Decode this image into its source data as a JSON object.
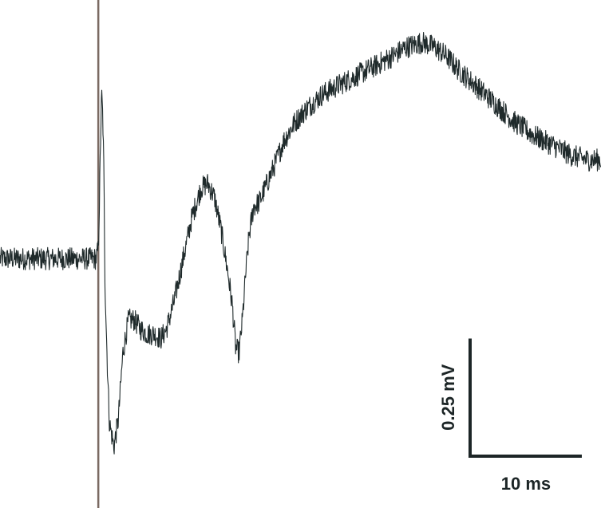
{
  "chart_data": {
    "type": "line",
    "title": "",
    "xlabel": "",
    "ylabel": "",
    "x_unit": "ms",
    "y_unit": "mV",
    "xlim": [
      0,
      53.8
    ],
    "ylim": [
      -0.53,
      0.55
    ],
    "grid": false,
    "legend": "none",
    "stimulus_marker": {
      "x": 8.8
    },
    "series": [
      {
        "x": [
          0,
          8.6,
          8.8,
          8.9,
          9.0,
          9.1,
          9.2,
          9.3,
          9.4,
          9.6,
          9.8,
          10.2,
          10.6,
          11.0,
          11.5,
          12.0,
          12.6,
          13.2,
          13.8,
          14.4,
          14.9,
          15.6,
          16.4,
          17.2,
          18.0,
          18.6,
          19.2,
          19.8,
          20.4,
          20.8,
          21.1,
          21.4,
          21.7,
          22.0,
          22.3,
          22.7,
          23.2,
          23.9,
          24.6,
          25.4,
          26.4,
          27.5,
          28.9,
          30.4,
          32.0,
          33.6,
          35.1,
          36.4,
          37.8,
          38.9,
          40.0,
          41.1,
          42.5,
          44.3,
          46.1,
          47.9,
          49.6,
          51.1,
          52.6,
          53.8
        ],
        "y": [
          0.0,
          0.0,
          0.02,
          0.12,
          0.25,
          0.35,
          0.3,
          0.18,
          -0.05,
          -0.22,
          -0.35,
          -0.4,
          -0.34,
          -0.2,
          -0.13,
          -0.13,
          -0.15,
          -0.16,
          -0.16,
          -0.17,
          -0.15,
          -0.09,
          0.0,
          0.09,
          0.15,
          0.16,
          0.13,
          0.06,
          -0.03,
          -0.1,
          -0.19,
          -0.2,
          -0.13,
          -0.03,
          0.05,
          0.11,
          0.12,
          0.16,
          0.2,
          0.25,
          0.29,
          0.32,
          0.35,
          0.37,
          0.39,
          0.41,
          0.43,
          0.45,
          0.46,
          0.45,
          0.43,
          0.4,
          0.37,
          0.33,
          0.29,
          0.26,
          0.24,
          0.22,
          0.21,
          0.21
        ]
      }
    ],
    "scale_bar": {
      "voltage": {
        "value": 0.25,
        "label": "0.25 mV"
      },
      "time": {
        "value": 10,
        "label": "10 ms"
      }
    },
    "colors": {
      "trace": "#1f2a2b",
      "stimulus": "#7a6a62",
      "scale_bar": "#1c2526"
    }
  }
}
